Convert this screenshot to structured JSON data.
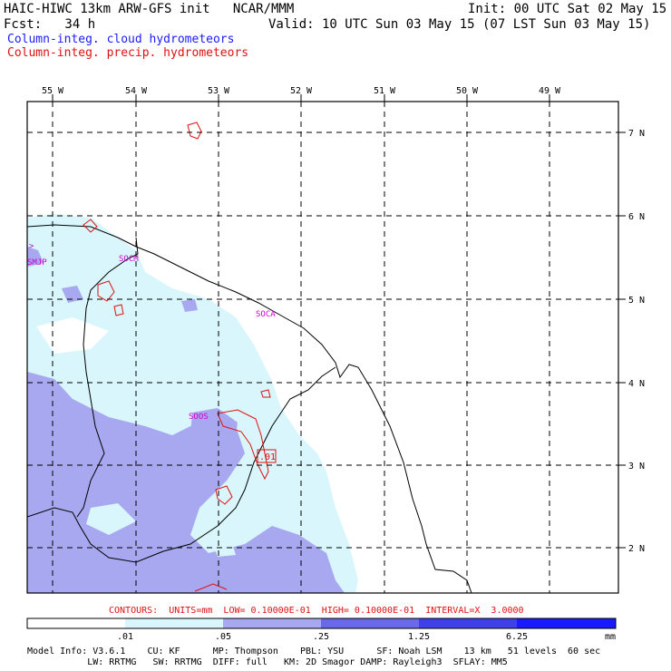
{
  "header": {
    "model_line": "HAIC-HIWC 13km ARW-GFS init   NCAR/MMM",
    "fcst_line": "Fcst:   34 h",
    "init_line": "Init: 00 UTC Sat 02 May 15",
    "valid_line": "Valid: 10 UTC Sun 03 May 15 (07 LST Sun 03 May 15)",
    "field1": "Column-integ. cloud hydrometeors",
    "field2": "Column-integ. precip. hydrometeors"
  },
  "map": {
    "lon_labels": [
      "55 W",
      "54 W",
      "53 W",
      "52 W",
      "51 W",
      "50 W",
      "49 W"
    ],
    "lat_labels": [
      "7 N",
      "6 N",
      "5 N",
      "4 N",
      "3 N",
      "2 N"
    ],
    "stations": [
      "SMJP",
      "SOCM",
      "SOCA",
      "SOOS"
    ],
    "station_marks": [
      ">"
    ],
    "box_label": ".01",
    "colors": {
      "frame": "#000000",
      "cloud_light": "#d8f6fb",
      "cloud_med": "#a8a8f0",
      "precip_contour": "#e01010",
      "station_label": "#d000d0"
    }
  },
  "contours": {
    "text": "CONTOURS:  UNITS=mm  LOW= 0.10000E-01  HIGH= 0.10000E-01  INTERVAL=X  3.0000"
  },
  "colorbar": {
    "ticks": [
      ".01",
      ".05",
      ".25",
      "1.25",
      "6.25"
    ],
    "unit": "mm",
    "colors": [
      "#ffffff",
      "#d8f6fb",
      "#a8a8f0",
      "#6a6ae8",
      "#4040e8",
      "#1a1aff"
    ]
  },
  "footer": {
    "line1": "Model Info: V3.6.1    CU: KF      MP: Thompson    PBL: YSU      SF: Noah LSM    13 km   51 levels  60 sec",
    "line2": "           LW: RRTMG   SW: RRTMG  DIFF: full   KM: 2D Smagor DAMP: Rayleigh3  SFLAY: MM5"
  }
}
